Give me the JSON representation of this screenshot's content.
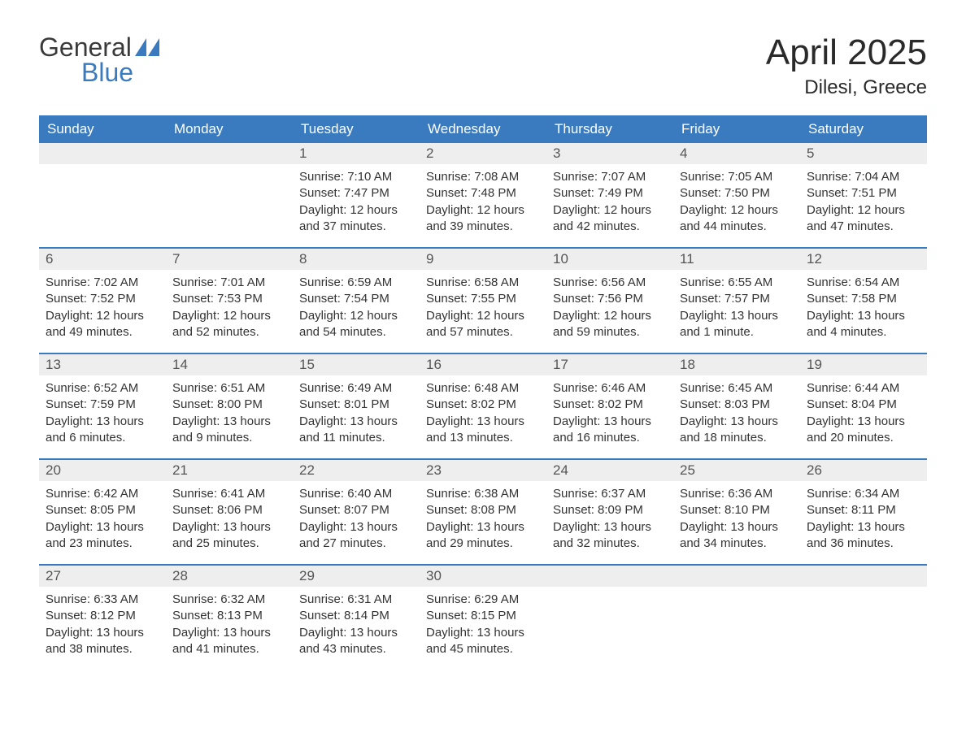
{
  "logo": {
    "text_general": "General",
    "text_blue": "Blue",
    "color_general": "#3a3a3a",
    "color_blue": "#3a7bbf"
  },
  "header": {
    "month_title": "April 2025",
    "location": "Dilesi, Greece"
  },
  "colors": {
    "header_bg": "#3a7bbf",
    "header_text": "#ffffff",
    "day_number_bg": "#eeeeee",
    "day_number_text": "#555555",
    "body_text": "#333333",
    "week_border": "#3a7bbf",
    "background": "#ffffff"
  },
  "weekdays": [
    "Sunday",
    "Monday",
    "Tuesday",
    "Wednesday",
    "Thursday",
    "Friday",
    "Saturday"
  ],
  "weeks": [
    [
      {
        "day": "",
        "sunrise": "",
        "sunset": "",
        "daylight": ""
      },
      {
        "day": "",
        "sunrise": "",
        "sunset": "",
        "daylight": ""
      },
      {
        "day": "1",
        "sunrise": "Sunrise: 7:10 AM",
        "sunset": "Sunset: 7:47 PM",
        "daylight": "Daylight: 12 hours and 37 minutes."
      },
      {
        "day": "2",
        "sunrise": "Sunrise: 7:08 AM",
        "sunset": "Sunset: 7:48 PM",
        "daylight": "Daylight: 12 hours and 39 minutes."
      },
      {
        "day": "3",
        "sunrise": "Sunrise: 7:07 AM",
        "sunset": "Sunset: 7:49 PM",
        "daylight": "Daylight: 12 hours and 42 minutes."
      },
      {
        "day": "4",
        "sunrise": "Sunrise: 7:05 AM",
        "sunset": "Sunset: 7:50 PM",
        "daylight": "Daylight: 12 hours and 44 minutes."
      },
      {
        "day": "5",
        "sunrise": "Sunrise: 7:04 AM",
        "sunset": "Sunset: 7:51 PM",
        "daylight": "Daylight: 12 hours and 47 minutes."
      }
    ],
    [
      {
        "day": "6",
        "sunrise": "Sunrise: 7:02 AM",
        "sunset": "Sunset: 7:52 PM",
        "daylight": "Daylight: 12 hours and 49 minutes."
      },
      {
        "day": "7",
        "sunrise": "Sunrise: 7:01 AM",
        "sunset": "Sunset: 7:53 PM",
        "daylight": "Daylight: 12 hours and 52 minutes."
      },
      {
        "day": "8",
        "sunrise": "Sunrise: 6:59 AM",
        "sunset": "Sunset: 7:54 PM",
        "daylight": "Daylight: 12 hours and 54 minutes."
      },
      {
        "day": "9",
        "sunrise": "Sunrise: 6:58 AM",
        "sunset": "Sunset: 7:55 PM",
        "daylight": "Daylight: 12 hours and 57 minutes."
      },
      {
        "day": "10",
        "sunrise": "Sunrise: 6:56 AM",
        "sunset": "Sunset: 7:56 PM",
        "daylight": "Daylight: 12 hours and 59 minutes."
      },
      {
        "day": "11",
        "sunrise": "Sunrise: 6:55 AM",
        "sunset": "Sunset: 7:57 PM",
        "daylight": "Daylight: 13 hours and 1 minute."
      },
      {
        "day": "12",
        "sunrise": "Sunrise: 6:54 AM",
        "sunset": "Sunset: 7:58 PM",
        "daylight": "Daylight: 13 hours and 4 minutes."
      }
    ],
    [
      {
        "day": "13",
        "sunrise": "Sunrise: 6:52 AM",
        "sunset": "Sunset: 7:59 PM",
        "daylight": "Daylight: 13 hours and 6 minutes."
      },
      {
        "day": "14",
        "sunrise": "Sunrise: 6:51 AM",
        "sunset": "Sunset: 8:00 PM",
        "daylight": "Daylight: 13 hours and 9 minutes."
      },
      {
        "day": "15",
        "sunrise": "Sunrise: 6:49 AM",
        "sunset": "Sunset: 8:01 PM",
        "daylight": "Daylight: 13 hours and 11 minutes."
      },
      {
        "day": "16",
        "sunrise": "Sunrise: 6:48 AM",
        "sunset": "Sunset: 8:02 PM",
        "daylight": "Daylight: 13 hours and 13 minutes."
      },
      {
        "day": "17",
        "sunrise": "Sunrise: 6:46 AM",
        "sunset": "Sunset: 8:02 PM",
        "daylight": "Daylight: 13 hours and 16 minutes."
      },
      {
        "day": "18",
        "sunrise": "Sunrise: 6:45 AM",
        "sunset": "Sunset: 8:03 PM",
        "daylight": "Daylight: 13 hours and 18 minutes."
      },
      {
        "day": "19",
        "sunrise": "Sunrise: 6:44 AM",
        "sunset": "Sunset: 8:04 PM",
        "daylight": "Daylight: 13 hours and 20 minutes."
      }
    ],
    [
      {
        "day": "20",
        "sunrise": "Sunrise: 6:42 AM",
        "sunset": "Sunset: 8:05 PM",
        "daylight": "Daylight: 13 hours and 23 minutes."
      },
      {
        "day": "21",
        "sunrise": "Sunrise: 6:41 AM",
        "sunset": "Sunset: 8:06 PM",
        "daylight": "Daylight: 13 hours and 25 minutes."
      },
      {
        "day": "22",
        "sunrise": "Sunrise: 6:40 AM",
        "sunset": "Sunset: 8:07 PM",
        "daylight": "Daylight: 13 hours and 27 minutes."
      },
      {
        "day": "23",
        "sunrise": "Sunrise: 6:38 AM",
        "sunset": "Sunset: 8:08 PM",
        "daylight": "Daylight: 13 hours and 29 minutes."
      },
      {
        "day": "24",
        "sunrise": "Sunrise: 6:37 AM",
        "sunset": "Sunset: 8:09 PM",
        "daylight": "Daylight: 13 hours and 32 minutes."
      },
      {
        "day": "25",
        "sunrise": "Sunrise: 6:36 AM",
        "sunset": "Sunset: 8:10 PM",
        "daylight": "Daylight: 13 hours and 34 minutes."
      },
      {
        "day": "26",
        "sunrise": "Sunrise: 6:34 AM",
        "sunset": "Sunset: 8:11 PM",
        "daylight": "Daylight: 13 hours and 36 minutes."
      }
    ],
    [
      {
        "day": "27",
        "sunrise": "Sunrise: 6:33 AM",
        "sunset": "Sunset: 8:12 PM",
        "daylight": "Daylight: 13 hours and 38 minutes."
      },
      {
        "day": "28",
        "sunrise": "Sunrise: 6:32 AM",
        "sunset": "Sunset: 8:13 PM",
        "daylight": "Daylight: 13 hours and 41 minutes."
      },
      {
        "day": "29",
        "sunrise": "Sunrise: 6:31 AM",
        "sunset": "Sunset: 8:14 PM",
        "daylight": "Daylight: 13 hours and 43 minutes."
      },
      {
        "day": "30",
        "sunrise": "Sunrise: 6:29 AM",
        "sunset": "Sunset: 8:15 PM",
        "daylight": "Daylight: 13 hours and 45 minutes."
      },
      {
        "day": "",
        "sunrise": "",
        "sunset": "",
        "daylight": ""
      },
      {
        "day": "",
        "sunrise": "",
        "sunset": "",
        "daylight": ""
      },
      {
        "day": "",
        "sunrise": "",
        "sunset": "",
        "daylight": ""
      }
    ]
  ]
}
